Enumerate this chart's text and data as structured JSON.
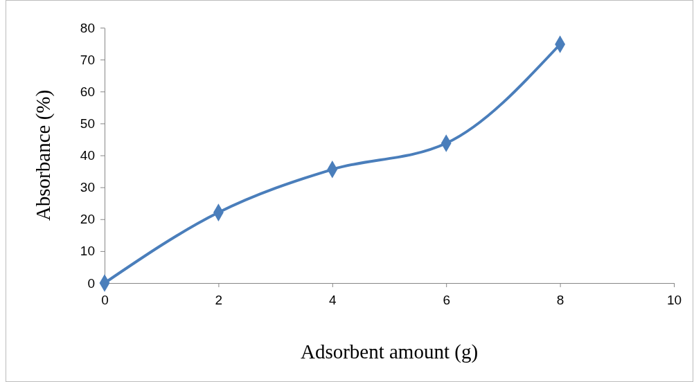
{
  "chart_data": {
    "type": "line",
    "xlabel": "Adsorbent amount (g)",
    "ylabel": "Absorbance (%)",
    "x": [
      0,
      2,
      4,
      6,
      8
    ],
    "series": [
      {
        "color": "#4a7ebb",
        "values": [
          0,
          22.1,
          35.6,
          43.8,
          74.8
        ]
      }
    ],
    "xlim": [
      0,
      10
    ],
    "xticks": [
      0,
      2,
      4,
      6,
      8,
      10
    ],
    "ylim": [
      0,
      80
    ],
    "yticks": [
      0,
      10,
      20,
      30,
      40,
      50,
      60,
      70,
      80
    ],
    "marker": "diamond",
    "line_style": "solid"
  }
}
